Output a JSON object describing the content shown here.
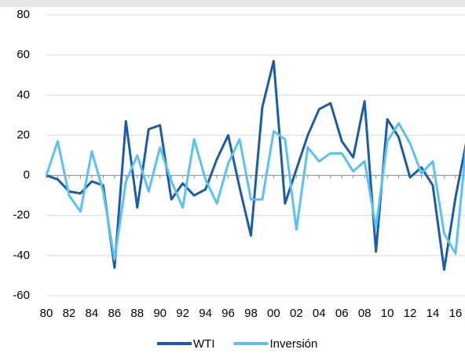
{
  "chart_data": {
    "type": "line",
    "categories": [
      "80",
      null,
      "82",
      null,
      "84",
      null,
      "86",
      null,
      "88",
      null,
      "90",
      null,
      "92",
      null,
      "94",
      null,
      "96",
      null,
      "98",
      null,
      "00",
      null,
      "02",
      null,
      "04",
      null,
      "06",
      null,
      "08",
      null,
      "10",
      null,
      "12",
      null,
      "14",
      null,
      "16",
      null
    ],
    "series": [
      {
        "name": "WTI",
        "color": "#1b5ca8",
        "values": [
          0,
          -2,
          -8,
          -9,
          -3,
          -5,
          -46,
          27,
          -16,
          23,
          25,
          -12,
          -4,
          -10,
          -7,
          8,
          20,
          -6,
          -30,
          34,
          57,
          -14,
          3,
          20,
          33,
          36,
          17,
          9,
          37,
          -38,
          28,
          19,
          -1,
          4,
          -5,
          -47,
          -11,
          18
        ]
      },
      {
        "name": "Inversión",
        "color": "#5bc1f1",
        "values": [
          0,
          17,
          -10,
          -18,
          12,
          -8,
          -42,
          -3,
          10,
          -8,
          14,
          -3,
          -16,
          18,
          -2,
          -14,
          6,
          18,
          -12,
          -12,
          22,
          18,
          -27,
          14,
          7,
          11,
          11,
          2,
          7,
          -26,
          17,
          26,
          16,
          1,
          7,
          -29,
          -39,
          18
        ]
      }
    ],
    "ylim": [
      -60,
      80
    ],
    "yticks": [
      -60,
      -40,
      -20,
      0,
      20,
      40,
      60,
      80
    ],
    "grid": true,
    "legend": "bottom"
  }
}
